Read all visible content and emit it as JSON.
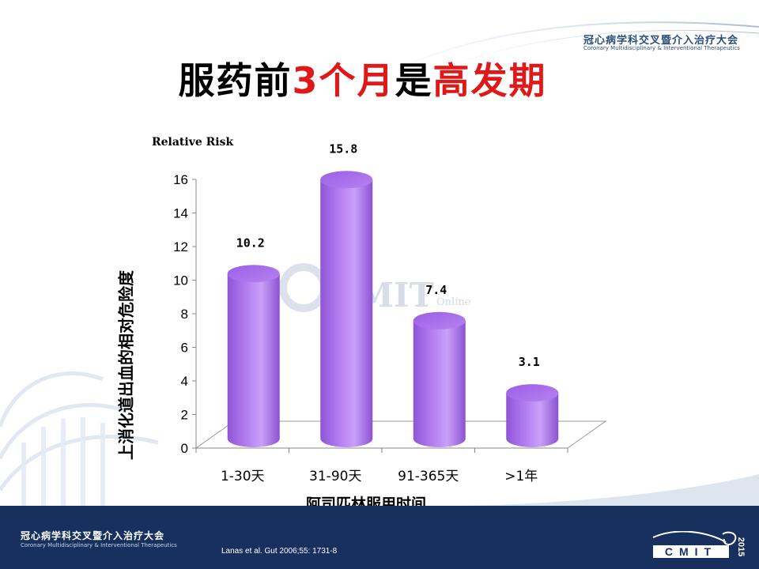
{
  "header": {
    "org_name": "冠心病学科交叉暨介入治疗大会",
    "org_name_en": "Coronary Multidisciplinary & Interventional Therapeutics"
  },
  "title": {
    "part1": "服药前",
    "part2": "3个月",
    "part3": "是",
    "part4": "高发期"
  },
  "watermark": {
    "text": "CMIT",
    "sub": "Online"
  },
  "footer": {
    "org_name": "冠心病学科交叉暨介入治疗大会",
    "org_name_en": "Coronary Multidisciplinary & Interventional Therapeutics",
    "citation": "Lanas et al. Gut  2006;55: 1731-8",
    "logo_text": "CMIT",
    "logo_year": "2015"
  },
  "colors": {
    "bar": "#b27cf0",
    "title_red": "#e01818",
    "footer": "#17305e"
  },
  "chart_data": {
    "type": "bar",
    "categories": [
      "1-30天",
      "31-90天",
      "91-365天",
      ">1年"
    ],
    "values": [
      10.2,
      15.8,
      7.4,
      3.1
    ],
    "data_labels": [
      "10.2",
      "15.8",
      "7.4",
      "3.1"
    ],
    "title": "",
    "xlabel": "阿司匹林服用时间",
    "ylabel": "上消化道出血的相对危险度",
    "unit_label": "Relative Risk",
    "ylim": [
      0,
      16
    ],
    "yticks": [
      0,
      2,
      4,
      6,
      8,
      10,
      12,
      14,
      16
    ],
    "grid": false,
    "style": "3d-cylinder"
  }
}
